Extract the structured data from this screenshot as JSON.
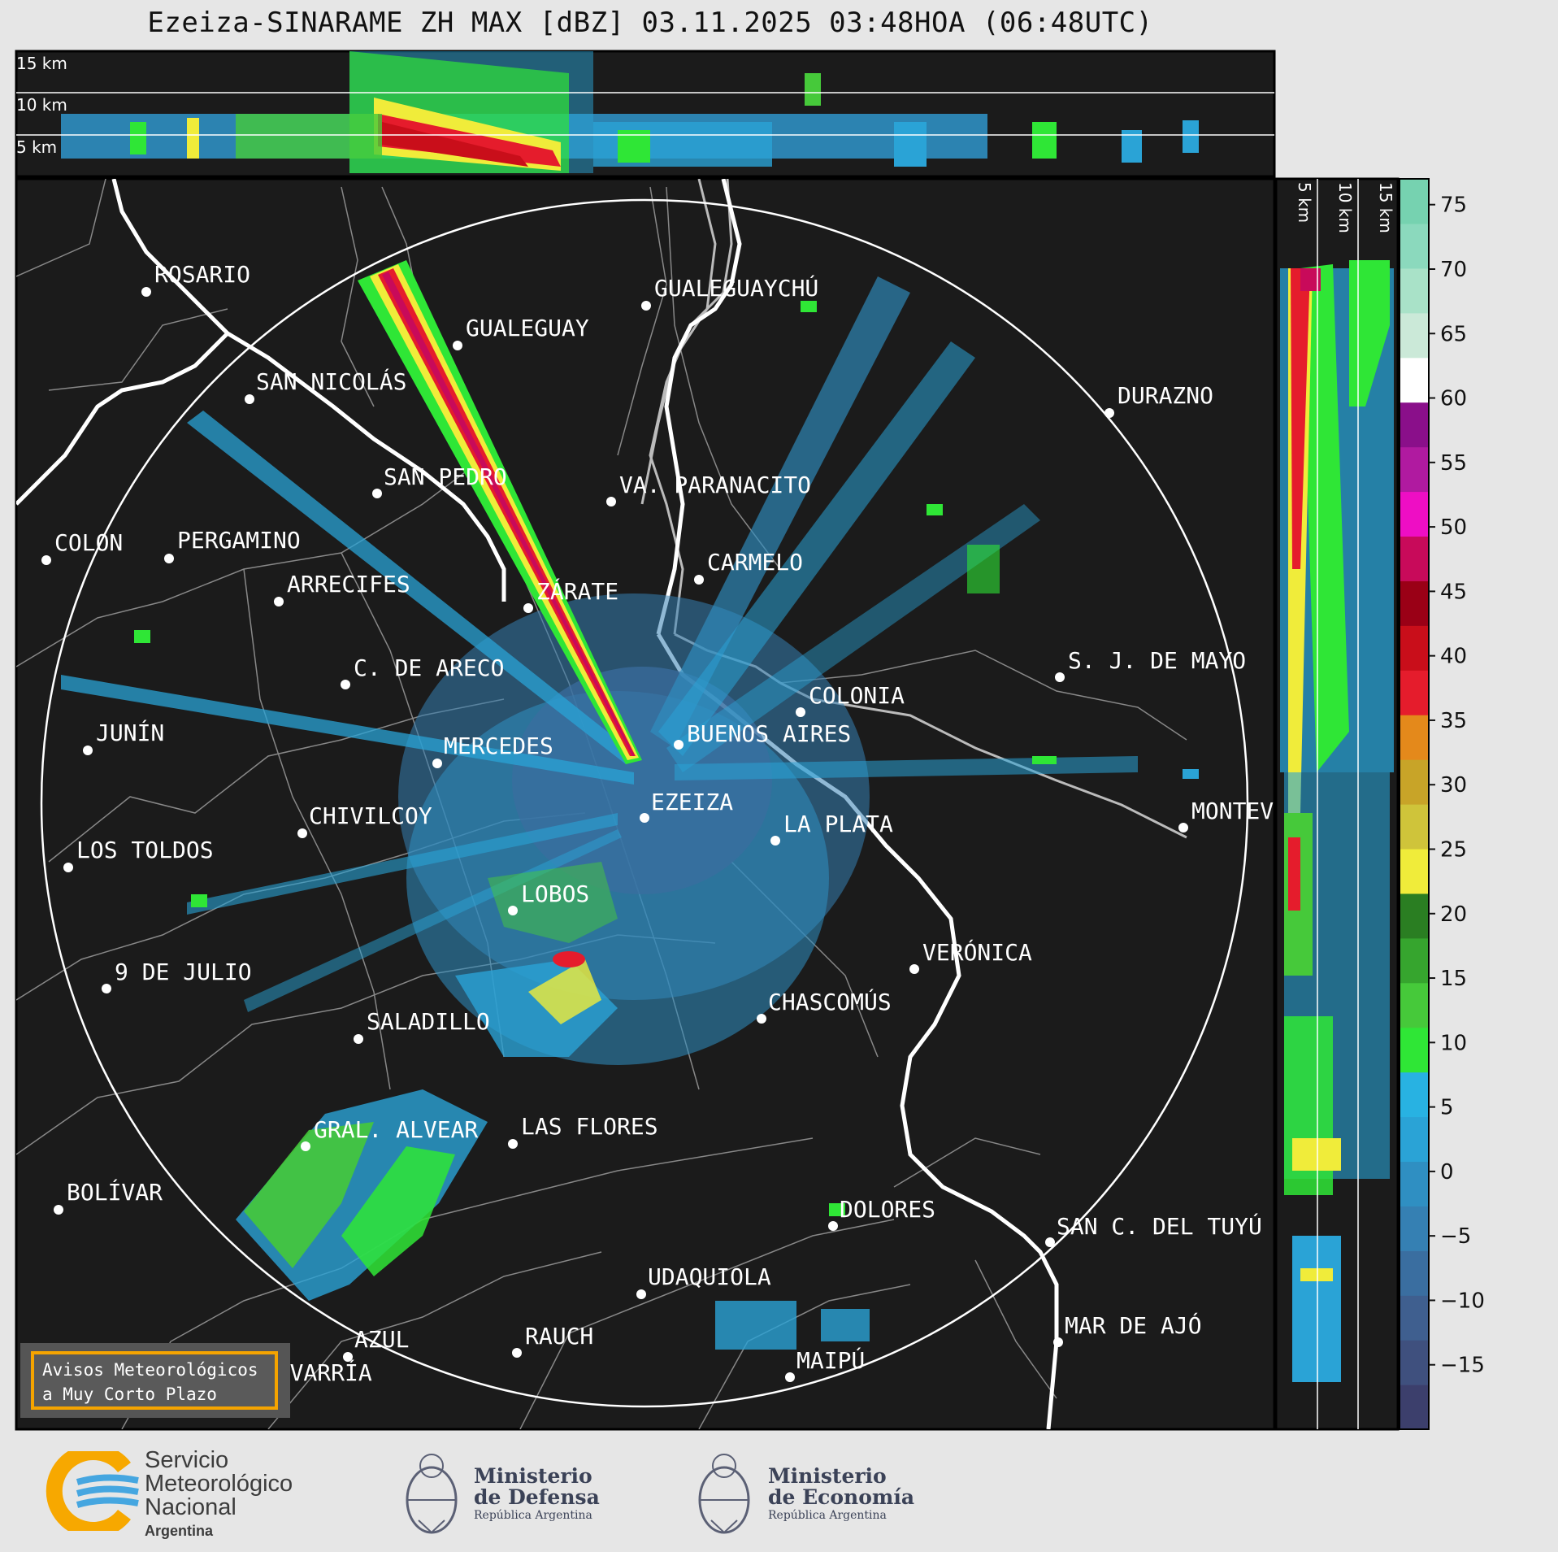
{
  "title": "Ezeiza-SINARAME ZH MAX [dBZ] 03.11.2025 03:48HOA (06:48UTC)",
  "top_panel_heights": [
    "15 km",
    "10 km",
    "5 km"
  ],
  "side_panel_heights": [
    "5 km",
    "10 km",
    "15 km"
  ],
  "cities": [
    {
      "name": "ROSARIO"
    },
    {
      "name": "GUALEGUAYCHÚ"
    },
    {
      "name": "GUALEGUAY"
    },
    {
      "name": "SAN NICOLÁS"
    },
    {
      "name": "DURAZNO"
    },
    {
      "name": "SAN PEDRO"
    },
    {
      "name": "VA. PARANACITO"
    },
    {
      "name": "COLON"
    },
    {
      "name": "PERGAMINO"
    },
    {
      "name": "CARMELO"
    },
    {
      "name": "ARRECIFES"
    },
    {
      "name": "ZÁRATE"
    },
    {
      "name": "S. J. DE MAYO"
    },
    {
      "name": "C. DE ARECO"
    },
    {
      "name": "COLONIA"
    },
    {
      "name": "JUNÍN"
    },
    {
      "name": "BUENOS AIRES"
    },
    {
      "name": "MERCEDES"
    },
    {
      "name": "MONTEV"
    },
    {
      "name": "EZEIZA"
    },
    {
      "name": "CHIVILCOY"
    },
    {
      "name": "LA PLATA"
    },
    {
      "name": "LOS TOLDOS"
    },
    {
      "name": "LOBOS"
    },
    {
      "name": "VERÓNICA"
    },
    {
      "name": "9 DE JULIO"
    },
    {
      "name": "CHASCOMÚS"
    },
    {
      "name": "SALADILLO"
    },
    {
      "name": "GRAL. ALVEAR"
    },
    {
      "name": "LAS FLORES"
    },
    {
      "name": "BOLÍVAR"
    },
    {
      "name": "DOLORES"
    },
    {
      "name": "SAN C. DEL TUYÚ"
    },
    {
      "name": "UDAQUIOLA"
    },
    {
      "name": "MAR DE AJÓ"
    },
    {
      "name": "AZUL"
    },
    {
      "name": "RAUCH"
    },
    {
      "name": "MAIPÚ"
    },
    {
      "name": "OLAVARRÍA"
    }
  ],
  "colorbar": {
    "ticks": [
      "75",
      "70",
      "65",
      "60",
      "55",
      "50",
      "45",
      "40",
      "35",
      "30",
      "25",
      "20",
      "15",
      "10",
      "5",
      "0",
      "−5",
      "−10",
      "−15"
    ],
    "range": [
      -20,
      77
    ],
    "colors": [
      "#3c3f6c",
      "#3f507e",
      "#3f5f8f",
      "#3a6ea0",
      "#3580b3",
      "#2f8fc2",
      "#2aa3d6",
      "#28b2e2",
      "#2fe636",
      "#46c93a",
      "#36a52e",
      "#2a7e22",
      "#f0ec3a",
      "#cfc43a",
      "#c8a428",
      "#e4891b",
      "#e51c2c",
      "#c90e1a",
      "#9a0016",
      "#c80a5a",
      "#ee0ec4",
      "#b01aa0",
      "#8a0f8a",
      "#ffffff",
      "#cbe9d8",
      "#a9e2c8",
      "#8bd9bd",
      "#76d2b0"
    ]
  },
  "aviso": {
    "line1": "Avisos Meteorológicos",
    "line2": "a Muy Corto Plazo"
  },
  "logos": {
    "smn": {
      "line1": "Servicio",
      "line2": "Meteorológico",
      "line3": "Nacional",
      "line4": "Argentina"
    },
    "defensa": {
      "line1": "Ministerio",
      "line2": "de Defensa",
      "line3": "República Argentina"
    },
    "economia": {
      "line1": "Ministerio",
      "line2": "de Economía",
      "line3": "República Argentina"
    }
  }
}
